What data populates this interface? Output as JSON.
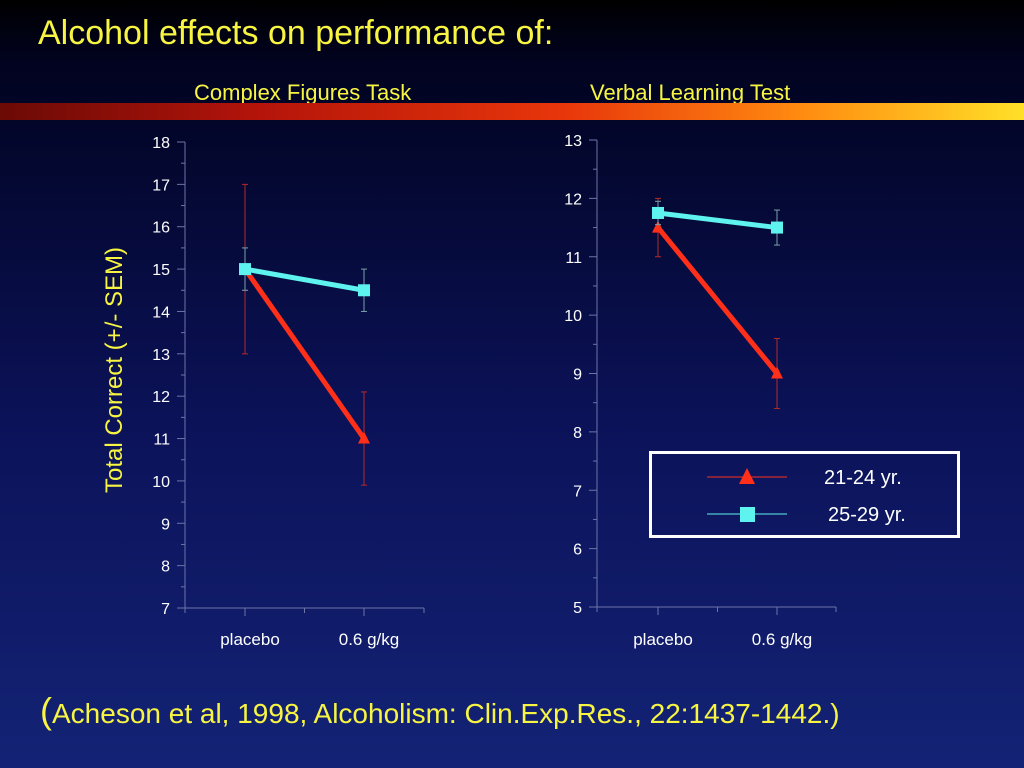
{
  "slide": {
    "title": "Alcohol effects on performance of:",
    "subtitle_left": "Complex Figures Task",
    "subtitle_right": "Verbal Learning Test",
    "citation_open": "(",
    "citation_rest": "Acheson et al, 1998, Alcoholism: Clin.Exp.Res., 22:1437-1442.)"
  },
  "ylabel": "Total Correct (+/- SEM)",
  "legend": {
    "items": [
      {
        "label": "21-24 yr.",
        "color": "#ff2f1a",
        "marker": "triangle"
      },
      {
        "label": "25-29 yr.",
        "color": "#5ef3ee",
        "marker": "square"
      }
    ]
  },
  "chart_data": [
    {
      "type": "line",
      "title": "Complex Figures Task",
      "categories": [
        "placebo",
        "0.6 g/kg"
      ],
      "ylabel": "Total Correct (+/- SEM)",
      "ylim": [
        7,
        18
      ],
      "yticks": [
        7,
        8,
        9,
        10,
        11,
        12,
        13,
        14,
        15,
        16,
        17,
        18
      ],
      "series": [
        {
          "name": "21-24 yr.",
          "color": "#ff2f1a",
          "marker": "triangle",
          "values": [
            15.0,
            11.0
          ],
          "error": [
            2.0,
            1.1
          ]
        },
        {
          "name": "25-29 yr.",
          "color": "#5ef3ee",
          "marker": "square",
          "values": [
            15.0,
            14.5
          ],
          "error": [
            0.5,
            0.5
          ]
        }
      ]
    },
    {
      "type": "line",
      "title": "Verbal Learning Test",
      "categories": [
        "placebo",
        "0.6 g/kg"
      ],
      "ylim": [
        5,
        13
      ],
      "yticks": [
        5,
        6,
        7,
        8,
        9,
        10,
        11,
        12,
        13
      ],
      "series": [
        {
          "name": "21-24 yr.",
          "color": "#ff2f1a",
          "marker": "triangle",
          "values": [
            11.5,
            9.0
          ],
          "error": [
            0.5,
            0.6
          ]
        },
        {
          "name": "25-29 yr.",
          "color": "#5ef3ee",
          "marker": "square",
          "values": [
            11.75,
            11.5
          ],
          "error": [
            0.2,
            0.3
          ]
        }
      ]
    }
  ]
}
